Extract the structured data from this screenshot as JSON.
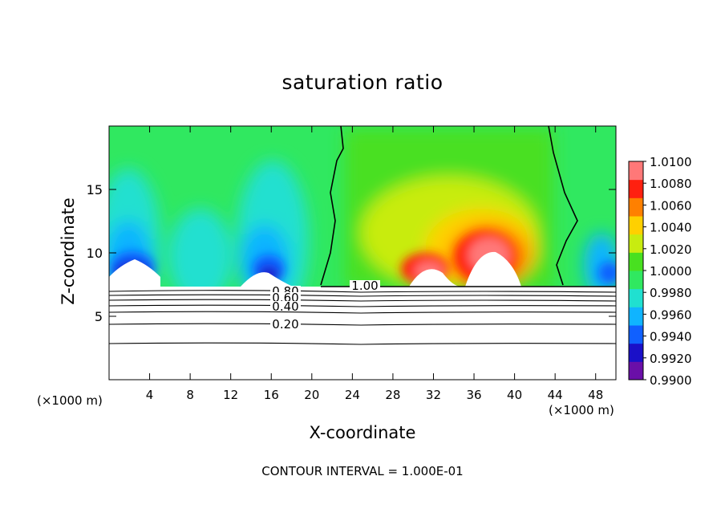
{
  "chart_data": {
    "type": "heatmap",
    "title": "saturation ratio",
    "xlabel": "X-coordinate",
    "ylabel": "Z-coordinate",
    "x_unit_left": "(×1000 m)",
    "x_unit_right": "(×1000 m)",
    "xlim": [
      0,
      50
    ],
    "ylim": [
      0,
      20
    ],
    "x_ticks": [
      4,
      8,
      12,
      16,
      20,
      24,
      28,
      32,
      36,
      40,
      44,
      48
    ],
    "x_tick_labels": [
      "4",
      "8",
      "12",
      "16",
      "20",
      "24",
      "28",
      "32",
      "36",
      "40",
      "44",
      "48"
    ],
    "y_ticks": [
      5,
      10,
      15
    ],
    "y_tick_labels": [
      "5",
      "10",
      "15"
    ],
    "colorbar": {
      "levels": [
        0.99,
        0.992,
        0.994,
        0.996,
        0.998,
        1.0,
        1.002,
        1.004,
        1.006,
        1.008,
        1.01
      ],
      "labels": [
        "0.9900",
        "0.9920",
        "0.9940",
        "0.9960",
        "0.9980",
        "1.0000",
        "1.0020",
        "1.0040",
        "1.0060",
        "1.0080",
        "1.0100"
      ],
      "colors": [
        "#6a0fa8",
        "#1a10c8",
        "#1060ff",
        "#10b4ff",
        "#20e0d0",
        "#30e860",
        "#48e020",
        "#c8ec10",
        "#ffd000",
        "#ff8000",
        "#ff2010",
        "#ff7878"
      ]
    },
    "contour_lines": [
      {
        "label": "1.00",
        "value": 1.0
      },
      {
        "label": "0.80",
        "value": 0.8
      },
      {
        "label": "0.60",
        "value": 0.6
      },
      {
        "label": "0.40",
        "value": 0.4
      },
      {
        "label": "0.20",
        "value": 0.2
      }
    ],
    "grid": false,
    "legend": "right"
  },
  "footer": {
    "contour_interval": "CONTOUR INTERVAL = 1.000E-01"
  }
}
